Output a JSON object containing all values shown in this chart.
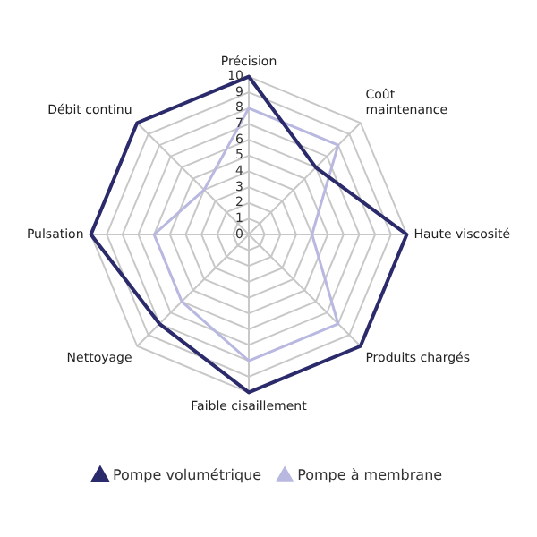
{
  "chart_data": {
    "type": "radar",
    "categories": [
      "Précision",
      "Coût\nmaintenance",
      "Haute viscosité",
      "Produits chargés",
      "Faible cisaillement",
      "Nettoyage",
      "Pulsation",
      "Débit continu"
    ],
    "series": [
      {
        "name": "Pompe volumétrique",
        "color": "#2b2a6b",
        "values": [
          10,
          6,
          10,
          10,
          10,
          8,
          10,
          10
        ]
      },
      {
        "name": "Pompe à membrane",
        "color": "#b8b8e0",
        "values": [
          8,
          8,
          4,
          8,
          8,
          6,
          6,
          4
        ]
      }
    ],
    "ylim": [
      0,
      10
    ],
    "yticks": [
      0,
      1,
      2,
      3,
      4,
      5,
      6,
      7,
      8,
      9,
      10
    ],
    "grid": true,
    "legend": "bottom"
  }
}
